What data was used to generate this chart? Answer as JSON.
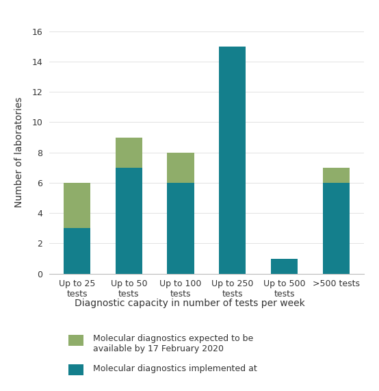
{
  "categories": [
    "Up to 25\ntests",
    "Up to 50\ntests",
    "Up to 100\ntests",
    "Up to 250\ntests",
    "Up to 500\ntests",
    ">500 tests"
  ],
  "teal_values": [
    3,
    7,
    6,
    15,
    1,
    6
  ],
  "green_values": [
    3,
    2,
    2,
    0,
    0,
    1
  ],
  "teal_color": "#147f8c",
  "green_color": "#8fad6a",
  "ylabel": "Number of laboratories",
  "xlabel": "Diagnostic capacity in number of tests per week",
  "ylim": [
    0,
    16
  ],
  "yticks": [
    0,
    2,
    4,
    6,
    8,
    10,
    12,
    14,
    16
  ],
  "legend_green": "Molecular diagnostics expected to be\navailable by 17 February 2020",
  "legend_teal": "Molecular diagnostics implemented at",
  "background_color": "#ffffff",
  "bar_width": 0.52
}
